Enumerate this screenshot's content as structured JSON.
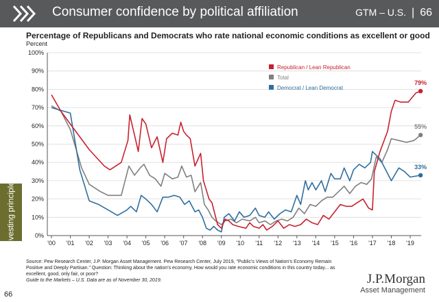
{
  "header": {
    "title": "Consumer confidence by political affiliation",
    "section": "GTM – U.S.",
    "divider": "|",
    "page": "66"
  },
  "sidebar_label": "Investing principles",
  "page_number": "66",
  "brand": {
    "name": "J.P.Morgan",
    "sub": "Asset Management"
  },
  "source": {
    "text": "Source: Pew Research Center, J.P. Morgan Asset Management. Pew Research Center, July 2019, \"Public's Views of Nation's Economy Remain Positive and Deeply Partisan.\" Question: Thinking about the nation's economy, How would you rate economic conditions in this country today... as excellent, good, only fair, or poor?",
    "note": "Guide to the Markets – U.S. Data are as of November 30, 2019."
  },
  "colors": {
    "header": "#58595b",
    "sidebar": "#6b6e2f",
    "republican": "#c8202f",
    "total": "#7f7f7f",
    "democrat": "#2e6e9e"
  },
  "chart_data": {
    "type": "line",
    "title": "Percentage of Republicans and Democrats who rate national economic conditions as excellent or good",
    "ylabel": "Percent",
    "ylim": [
      0,
      100
    ],
    "xlim": [
      2000,
      2019.7
    ],
    "yticks": [
      0,
      10,
      20,
      30,
      40,
      50,
      60,
      70,
      80,
      90,
      100
    ],
    "ytick_labels": [
      "0%",
      "10%",
      "20%",
      "30%",
      "40%",
      "50%",
      "60%",
      "70%",
      "80%",
      "90%",
      "100%"
    ],
    "xticks": [
      2000,
      2001,
      2002,
      2003,
      2004,
      2005,
      2006,
      2007,
      2008,
      2009,
      2010,
      2011,
      2012,
      2013,
      2014,
      2015,
      2016,
      2017,
      2018,
      2019
    ],
    "xtick_labels": [
      "'00",
      "'01",
      "'02",
      "'03",
      "'04",
      "'05",
      "'06",
      "'07",
      "'08",
      "'09",
      "'10",
      "'11",
      "'12",
      "'13",
      "'14",
      "'15",
      "'16",
      "'17",
      "'18",
      "'19"
    ],
    "grid": "horizontal",
    "legend": "top-right",
    "series": [
      {
        "name": "Republican / Lean Republican",
        "color": "#c8202f",
        "end_label": "79%",
        "points": [
          [
            2000,
            77
          ],
          [
            2000.5,
            68
          ],
          [
            2001,
            61
          ],
          [
            2002,
            47
          ],
          [
            2002.8,
            38
          ],
          [
            2003.1,
            36
          ],
          [
            2003.7,
            40
          ],
          [
            2004.05,
            52
          ],
          [
            2004.15,
            66
          ],
          [
            2004.4,
            55
          ],
          [
            2004.6,
            46
          ],
          [
            2004.8,
            64
          ],
          [
            2005,
            61
          ],
          [
            2005.3,
            48
          ],
          [
            2005.6,
            54
          ],
          [
            2005.9,
            40
          ],
          [
            2006.1,
            53
          ],
          [
            2006.4,
            56
          ],
          [
            2006.7,
            55
          ],
          [
            2006.85,
            62
          ],
          [
            2007,
            57
          ],
          [
            2007.15,
            55
          ],
          [
            2007.35,
            53
          ],
          [
            2007.6,
            38
          ],
          [
            2007.9,
            45
          ],
          [
            2008.05,
            30
          ],
          [
            2008.2,
            25
          ],
          [
            2008.35,
            20
          ],
          [
            2008.5,
            18
          ],
          [
            2008.65,
            12
          ],
          [
            2008.8,
            6
          ],
          [
            2009,
            4
          ],
          [
            2009.2,
            9
          ],
          [
            2009.4,
            8
          ],
          [
            2009.6,
            6
          ],
          [
            2009.9,
            5
          ],
          [
            2010.3,
            4
          ],
          [
            2010.5,
            7
          ],
          [
            2010.7,
            5
          ],
          [
            2011,
            4
          ],
          [
            2011.2,
            6
          ],
          [
            2011.4,
            3
          ],
          [
            2011.7,
            5
          ],
          [
            2012,
            8
          ],
          [
            2012.3,
            4
          ],
          [
            2012.6,
            6
          ],
          [
            2012.9,
            5
          ],
          [
            2013.2,
            6
          ],
          [
            2013.5,
            9
          ],
          [
            2013.8,
            7
          ],
          [
            2014.1,
            6
          ],
          [
            2014.4,
            11
          ],
          [
            2014.7,
            9
          ],
          [
            2015,
            13
          ],
          [
            2015.3,
            17
          ],
          [
            2015.6,
            16
          ],
          [
            2015.9,
            16
          ],
          [
            2016.2,
            18
          ],
          [
            2016.5,
            20
          ],
          [
            2016.8,
            15
          ],
          [
            2017,
            14
          ],
          [
            2017.1,
            35
          ],
          [
            2017.4,
            46
          ],
          [
            2017.8,
            57
          ],
          [
            2018,
            68
          ],
          [
            2018.2,
            74
          ],
          [
            2018.5,
            73
          ],
          [
            2018.9,
            73
          ],
          [
            2019.3,
            78
          ],
          [
            2019.55,
            79
          ]
        ]
      },
      {
        "name": "Total",
        "color": "#7f7f7f",
        "end_label": "55%",
        "points": [
          [
            2000,
            71
          ],
          [
            2000.5,
            68
          ],
          [
            2001,
            58
          ],
          [
            2001.6,
            37
          ],
          [
            2002,
            28
          ],
          [
            2002.6,
            24
          ],
          [
            2003,
            22
          ],
          [
            2003.7,
            22
          ],
          [
            2004.1,
            38
          ],
          [
            2004.4,
            33
          ],
          [
            2004.7,
            37
          ],
          [
            2004.9,
            39
          ],
          [
            2005.2,
            33
          ],
          [
            2005.5,
            31
          ],
          [
            2005.8,
            27
          ],
          [
            2006,
            34
          ],
          [
            2006.4,
            31
          ],
          [
            2006.7,
            32
          ],
          [
            2006.9,
            38
          ],
          [
            2007.15,
            32
          ],
          [
            2007.4,
            33
          ],
          [
            2007.6,
            24
          ],
          [
            2007.9,
            29
          ],
          [
            2008.1,
            17
          ],
          [
            2008.3,
            14
          ],
          [
            2008.5,
            10
          ],
          [
            2008.7,
            8
          ],
          [
            2009,
            6
          ],
          [
            2009.2,
            8
          ],
          [
            2009.5,
            9
          ],
          [
            2009.8,
            7
          ],
          [
            2010.1,
            9
          ],
          [
            2010.5,
            8
          ],
          [
            2010.8,
            10
          ],
          [
            2011,
            7
          ],
          [
            2011.3,
            8
          ],
          [
            2011.6,
            6
          ],
          [
            2011.9,
            8
          ],
          [
            2012.2,
            9
          ],
          [
            2012.5,
            8
          ],
          [
            2012.8,
            10
          ],
          [
            2013.1,
            15
          ],
          [
            2013.4,
            12
          ],
          [
            2013.7,
            17
          ],
          [
            2014,
            16
          ],
          [
            2014.3,
            19
          ],
          [
            2014.6,
            21
          ],
          [
            2014.9,
            21
          ],
          [
            2015.2,
            24
          ],
          [
            2015.5,
            27
          ],
          [
            2015.8,
            23
          ],
          [
            2016.1,
            27
          ],
          [
            2016.4,
            29
          ],
          [
            2016.7,
            28
          ],
          [
            2016.95,
            31
          ],
          [
            2017.2,
            43
          ],
          [
            2017.5,
            40
          ],
          [
            2017.8,
            47
          ],
          [
            2018,
            53
          ],
          [
            2018.4,
            52
          ],
          [
            2018.8,
            51
          ],
          [
            2019.2,
            52
          ],
          [
            2019.55,
            55
          ]
        ]
      },
      {
        "name": "Democrat / Lean Democrat",
        "color": "#2e6e9e",
        "end_label": "33%",
        "points": [
          [
            2000,
            70
          ],
          [
            2001,
            67
          ],
          [
            2001.5,
            36
          ],
          [
            2002,
            19
          ],
          [
            2002.5,
            17
          ],
          [
            2003,
            14
          ],
          [
            2003.5,
            11
          ],
          [
            2004,
            14
          ],
          [
            2004.2,
            16
          ],
          [
            2004.5,
            13
          ],
          [
            2004.75,
            22
          ],
          [
            2005,
            20
          ],
          [
            2005.3,
            17
          ],
          [
            2005.6,
            13
          ],
          [
            2005.9,
            21
          ],
          [
            2006.2,
            21
          ],
          [
            2006.5,
            22
          ],
          [
            2006.8,
            21
          ],
          [
            2007.05,
            17
          ],
          [
            2007.3,
            19
          ],
          [
            2007.6,
            13
          ],
          [
            2007.8,
            14
          ],
          [
            2008,
            10
          ],
          [
            2008.2,
            4
          ],
          [
            2008.4,
            3
          ],
          [
            2008.6,
            5
          ],
          [
            2008.8,
            3
          ],
          [
            2009,
            2
          ],
          [
            2009.15,
            10
          ],
          [
            2009.4,
            12
          ],
          [
            2009.7,
            8
          ],
          [
            2009.95,
            13
          ],
          [
            2010.2,
            10
          ],
          [
            2010.5,
            11
          ],
          [
            2010.8,
            15
          ],
          [
            2011,
            11
          ],
          [
            2011.3,
            10
          ],
          [
            2011.5,
            13
          ],
          [
            2011.8,
            9
          ],
          [
            2012.1,
            12
          ],
          [
            2012.4,
            14
          ],
          [
            2012.7,
            13
          ],
          [
            2013,
            22
          ],
          [
            2013.2,
            17
          ],
          [
            2013.45,
            30
          ],
          [
            2013.6,
            25
          ],
          [
            2013.8,
            29
          ],
          [
            2014,
            25
          ],
          [
            2014.3,
            30
          ],
          [
            2014.5,
            24
          ],
          [
            2014.8,
            34
          ],
          [
            2015,
            31
          ],
          [
            2015.3,
            31
          ],
          [
            2015.5,
            37
          ],
          [
            2015.8,
            30
          ],
          [
            2016,
            36
          ],
          [
            2016.3,
            39
          ],
          [
            2016.6,
            37
          ],
          [
            2016.9,
            40
          ],
          [
            2017,
            46
          ],
          [
            2017.4,
            42
          ],
          [
            2017.7,
            36
          ],
          [
            2018,
            30
          ],
          [
            2018.4,
            37
          ],
          [
            2018.7,
            35
          ],
          [
            2019,
            32
          ],
          [
            2019.55,
            33
          ]
        ]
      }
    ]
  }
}
